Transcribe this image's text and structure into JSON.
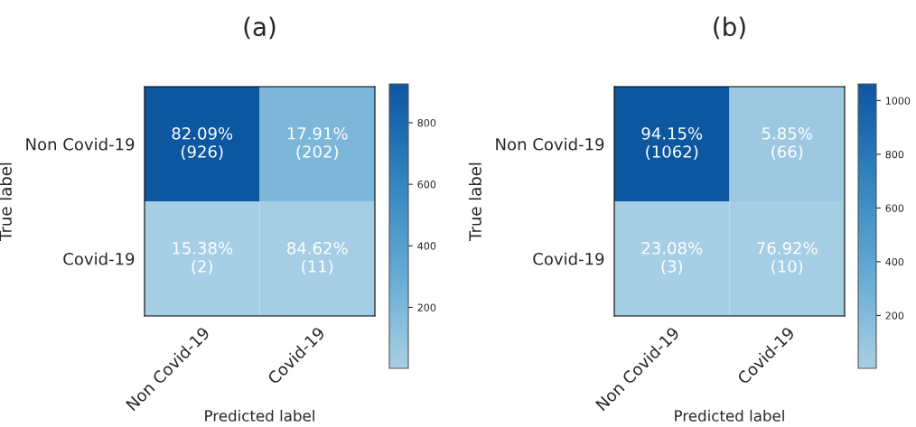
{
  "chart_data": [
    {
      "type": "heatmap",
      "title": "(a)",
      "xlabel": "Predicted label",
      "ylabel": "True label",
      "categories": [
        "Non Covid-19",
        "Covid-19"
      ],
      "y_categories": [
        "Non Covid-19",
        "Covid-19"
      ],
      "cells": [
        [
          926,
          202
        ],
        [
          2,
          11
        ]
      ],
      "cell_labels": [
        [
          "82.09%\n(926)",
          "17.91%\n(202)"
        ],
        [
          "15.38%\n(2)",
          "84.62%\n(11)"
        ]
      ],
      "clim": [
        2,
        926
      ],
      "cticks": [
        200,
        400,
        600,
        800
      ]
    },
    {
      "type": "heatmap",
      "title": "(b)",
      "xlabel": "Predicted label",
      "ylabel": "True label",
      "categories": [
        "Non Covid-19",
        "Covid-19"
      ],
      "y_categories": [
        "Non Covid-19",
        "Covid-19"
      ],
      "cells": [
        [
          1062,
          66
        ],
        [
          3,
          10
        ]
      ],
      "cell_labels": [
        [
          "94.15%\n(1062)",
          "5.85%\n(66)"
        ],
        [
          "23.08%\n(3)",
          "76.92%\n(10)"
        ]
      ],
      "clim": [
        3,
        1062
      ],
      "cticks": [
        200,
        400,
        600,
        800,
        1000
      ]
    }
  ]
}
